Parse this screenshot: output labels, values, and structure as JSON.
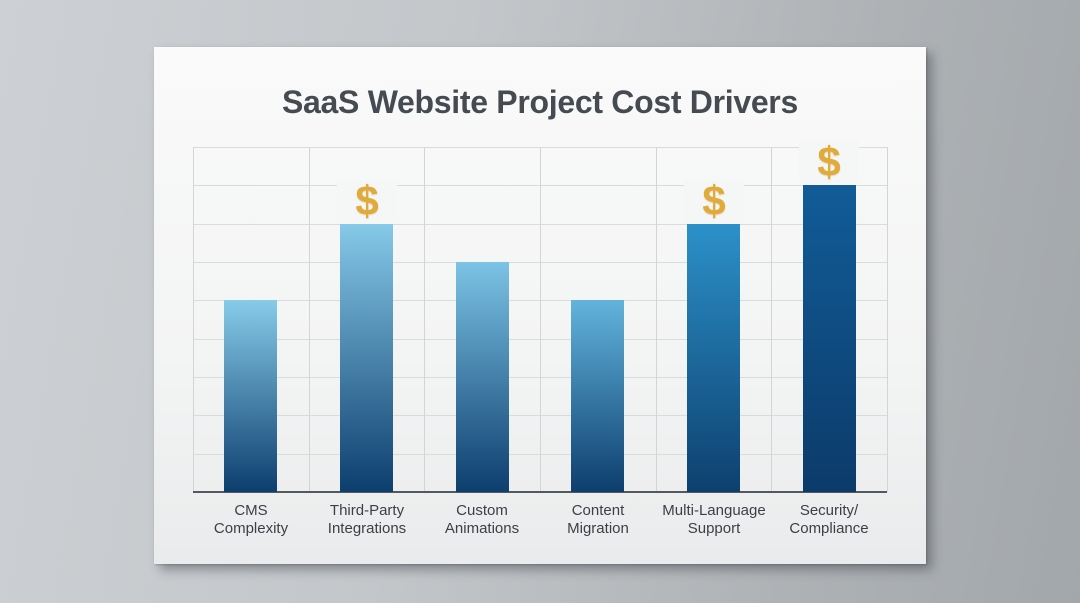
{
  "chart_data": {
    "type": "bar",
    "title": "SaaS Website Project Cost Drivers",
    "xlabel": "",
    "ylabel": "",
    "ylim": [
      0,
      9
    ],
    "grid": true,
    "legend": null,
    "categories": [
      "CMS Complexity",
      "Third-Party Integrations",
      "Custom Animations",
      "Content Migration",
      "Multi-Language Support",
      "Security/ Compliance"
    ],
    "values": [
      5,
      7,
      6,
      5,
      7,
      8
    ],
    "annotations": [
      {
        "category": "Third-Party Integrations",
        "icon": "dollar-sign"
      },
      {
        "category": "Multi-Language Support",
        "icon": "dollar-sign"
      },
      {
        "category": "Security/ Compliance",
        "icon": "dollar-sign"
      }
    ]
  },
  "title": "SaaS Website Project Cost Drivers",
  "bars": [
    {
      "label_line1": "CMS",
      "label_line2": "Complexity",
      "value": 5,
      "dollar": false,
      "color_top": "#87cbe9",
      "color_bottom": "#0d3e6e"
    },
    {
      "label_line1": "Third-Party",
      "label_line2": "Integrations",
      "value": 7,
      "dollar": true,
      "color_top": "#86c9e8",
      "color_bottom": "#0d3e6e"
    },
    {
      "label_line1": "Custom",
      "label_line2": "Animations",
      "value": 6,
      "dollar": false,
      "color_top": "#7cc3e5",
      "color_bottom": "#0d3e6e"
    },
    {
      "label_line1": "Content",
      "label_line2": "Migration",
      "value": 5,
      "dollar": false,
      "color_top": "#62b4dd",
      "color_bottom": "#0d3e6e"
    },
    {
      "label_line1": "Multi-Language",
      "label_line2": "Support",
      "value": 7,
      "dollar": true,
      "color_top": "#2c91c9",
      "color_bottom": "#0d406f"
    },
    {
      "label_line1": "Security/",
      "label_line2": "Compliance",
      "value": 8,
      "dollar": true,
      "color_top": "#115c98",
      "color_bottom": "#0c3b6a"
    }
  ],
  "dollar_symbol": "$",
  "colors": {
    "title": "#464b52",
    "dollar": "#e0ab3a",
    "grid": "#d9dbdd",
    "axis": "#55595e"
  }
}
